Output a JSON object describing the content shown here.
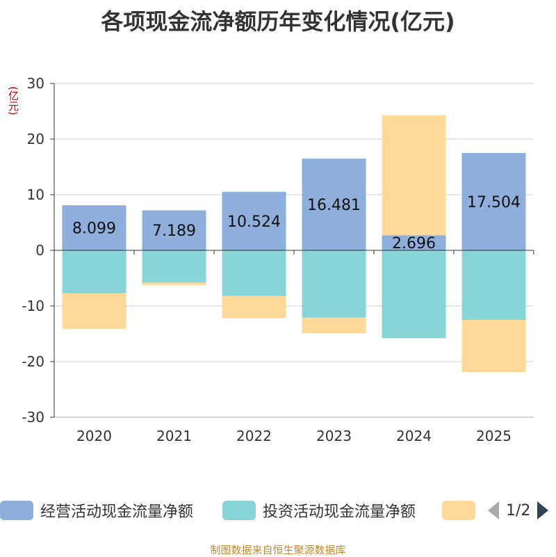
{
  "chart_data": {
    "type": "bar",
    "stacked": true,
    "title": "各项现金流净额历年变化情况(亿元)",
    "ylabel": "(亿元)",
    "categories": [
      "2020",
      "2021",
      "2022",
      "2023",
      "2024",
      "2025"
    ],
    "ylim": [
      -30,
      30
    ],
    "yticks": [
      30,
      20,
      10,
      0,
      -10,
      -20,
      -30
    ],
    "grid": true,
    "legend_placement": "bottom",
    "series": [
      {
        "name": "经营活动现金流量净额",
        "color": "#8eafdb",
        "values": [
          8.099,
          7.189,
          10.524,
          16.481,
          2.696,
          17.504
        ],
        "labels": [
          "8.099",
          "7.189",
          "10.524",
          "16.481",
          "2.696",
          "17.504"
        ]
      },
      {
        "name": "投资活动现金流量净额",
        "color": "#88d5d8",
        "values": [
          -7.7,
          -5.8,
          -8.2,
          -12.1,
          -15.8,
          -12.5
        ]
      },
      {
        "name": "",
        "color": "#ffd999",
        "values": [
          -6.4,
          -0.5,
          -4.0,
          -2.8,
          21.6,
          -9.4
        ]
      }
    ]
  },
  "legend": {
    "items": [
      {
        "label": "经营活动现金流量净额",
        "color": "#8eafdb"
      },
      {
        "label": "投资活动现金流量净额",
        "color": "#88d5d8"
      },
      {
        "label": "",
        "color": "#ffd999"
      }
    ],
    "page_text": "1/2",
    "prev_icon": "triangle-left-icon",
    "next_icon": "triangle-right-icon"
  },
  "source_text": "制图数据来自恒生聚源数据库"
}
